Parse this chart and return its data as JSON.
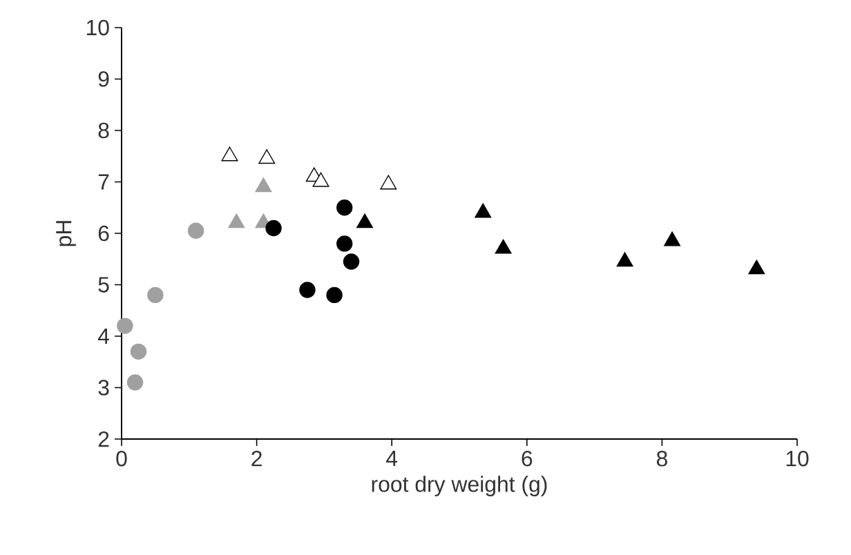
{
  "chart_data": {
    "type": "scatter",
    "xlabel": "root dry weight (g)",
    "ylabel": "pH",
    "xlim": [
      0,
      10
    ],
    "xticks": [
      0,
      2,
      4,
      6,
      8,
      10
    ],
    "ylim": [
      2,
      10
    ],
    "yticks": [
      2,
      3,
      4,
      5,
      6,
      7,
      8,
      9,
      10
    ],
    "grid": false,
    "series": [
      {
        "color": "#a0a0a0",
        "marker": "circle",
        "x": [
          0.05,
          0.25,
          0.2,
          0.5,
          1.1
        ],
        "values": [
          4.2,
          3.7,
          3.1,
          4.8,
          6.05
        ]
      },
      {
        "color": "#a0a0a0",
        "marker": "triangle",
        "x": [
          1.7,
          2.1,
          2.1
        ],
        "values": [
          6.2,
          6.2,
          6.9
        ]
      },
      {
        "color": "#ffffff",
        "marker": "triangle",
        "x": [
          1.6,
          2.15,
          2.85,
          2.95,
          3.95
        ],
        "values": [
          7.5,
          7.45,
          7.1,
          7.0,
          6.95
        ]
      },
      {
        "color": "#000000",
        "marker": "circle",
        "x": [
          2.25,
          2.75,
          3.15,
          3.3,
          3.3,
          3.4
        ],
        "values": [
          6.1,
          4.9,
          4.8,
          5.8,
          6.5,
          5.45
        ]
      },
      {
        "color": "#000000",
        "marker": "triangle",
        "x": [
          3.6,
          5.35,
          5.65,
          7.45,
          8.15,
          9.4
        ],
        "values": [
          6.2,
          6.4,
          5.7,
          5.45,
          5.85,
          5.3
        ]
      }
    ]
  }
}
